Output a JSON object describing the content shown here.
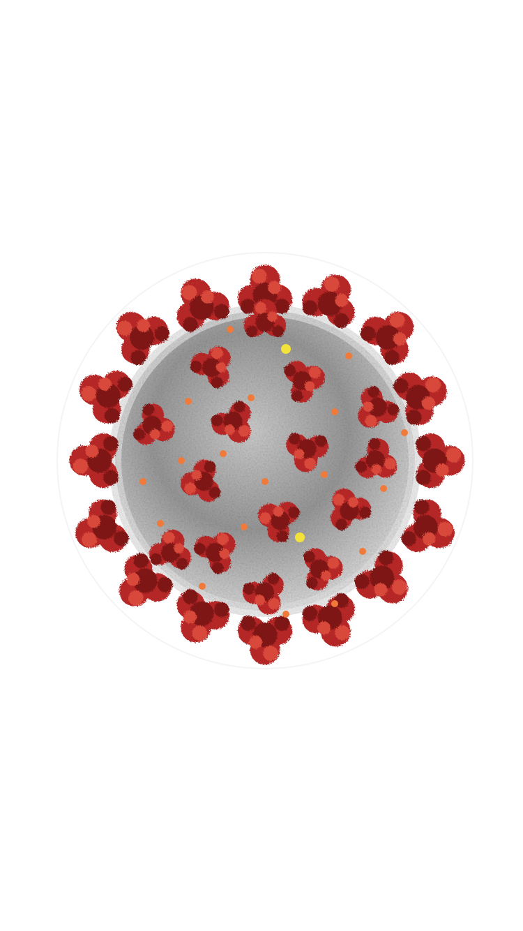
{
  "screen": {
    "background_color": "#ffffff"
  },
  "illustration": {
    "subject": "coronavirus-virion",
    "colors": {
      "body_light": "#e2e2e2",
      "body_mid": "#a9a9a9",
      "body_dark": "#6e6e6e",
      "spike": "#b52727",
      "spike_dark": "#7e1414",
      "spike_light": "#d94a3a",
      "protein_orange": "#f07a3a",
      "protein_yellow": "#f2e23a"
    }
  }
}
